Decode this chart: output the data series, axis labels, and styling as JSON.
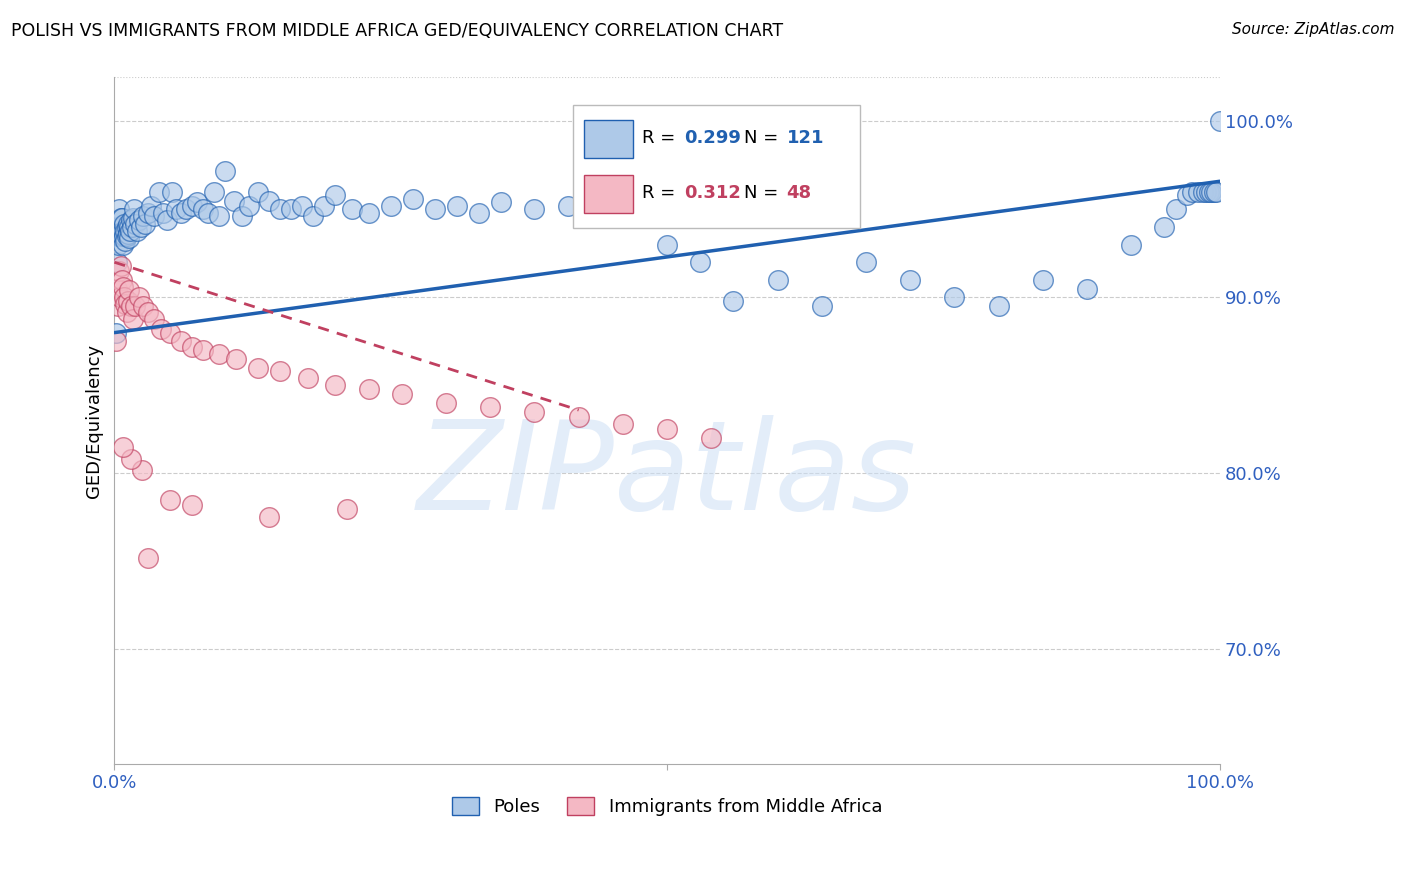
{
  "title": "POLISH VS IMMIGRANTS FROM MIDDLE AFRICA GED/EQUIVALENCY CORRELATION CHART",
  "source": "Source: ZipAtlas.com",
  "ylabel": "GED/Equivalency",
  "ytick_labels": [
    "70.0%",
    "80.0%",
    "90.0%",
    "100.0%"
  ],
  "ytick_values": [
    0.7,
    0.8,
    0.9,
    1.0
  ],
  "legend_label_blue": "Poles",
  "legend_label_pink": "Immigrants from Middle Africa",
  "watermark": "ZIPatlas",
  "blue_color": "#aec9e8",
  "pink_color": "#f4b8c4",
  "trend_blue_color": "#2060b0",
  "trend_pink_color": "#c04060",
  "axis_label_color": "#3060c0",
  "poles_x": [
    0.001,
    0.002,
    0.002,
    0.003,
    0.003,
    0.004,
    0.004,
    0.005,
    0.005,
    0.006,
    0.006,
    0.007,
    0.007,
    0.007,
    0.008,
    0.008,
    0.009,
    0.009,
    0.01,
    0.01,
    0.011,
    0.011,
    0.012,
    0.012,
    0.013,
    0.013,
    0.014,
    0.015,
    0.016,
    0.017,
    0.018,
    0.019,
    0.02,
    0.022,
    0.024,
    0.026,
    0.028,
    0.03,
    0.033,
    0.036,
    0.04,
    0.044,
    0.048,
    0.052,
    0.056,
    0.06,
    0.065,
    0.07,
    0.075,
    0.08,
    0.085,
    0.09,
    0.095,
    0.1,
    0.108,
    0.115,
    0.122,
    0.13,
    0.14,
    0.15,
    0.16,
    0.17,
    0.18,
    0.19,
    0.2,
    0.215,
    0.23,
    0.25,
    0.27,
    0.29,
    0.31,
    0.33,
    0.35,
    0.38,
    0.41,
    0.44,
    0.47,
    0.5,
    0.53,
    0.56,
    0.6,
    0.64,
    0.68,
    0.72,
    0.76,
    0.8,
    0.84,
    0.88,
    0.92,
    0.95,
    0.96,
    0.97,
    0.975,
    0.98,
    0.985,
    0.988,
    0.99,
    0.992,
    0.995,
    0.997,
    1.0
  ],
  "poles_y": [
    0.88,
    0.935,
    0.92,
    0.94,
    0.93,
    0.935,
    0.95,
    0.94,
    0.935,
    0.94,
    0.945,
    0.935,
    0.94,
    0.945,
    0.93,
    0.938,
    0.935,
    0.942,
    0.938,
    0.932,
    0.94,
    0.935,
    0.942,
    0.936,
    0.94,
    0.934,
    0.938,
    0.944,
    0.94,
    0.945,
    0.95,
    0.942,
    0.938,
    0.944,
    0.94,
    0.946,
    0.942,
    0.948,
    0.952,
    0.946,
    0.96,
    0.948,
    0.944,
    0.96,
    0.95,
    0.948,
    0.95,
    0.952,
    0.954,
    0.95,
    0.948,
    0.96,
    0.946,
    0.972,
    0.955,
    0.946,
    0.952,
    0.96,
    0.955,
    0.95,
    0.95,
    0.952,
    0.946,
    0.952,
    0.958,
    0.95,
    0.948,
    0.952,
    0.956,
    0.95,
    0.952,
    0.948,
    0.954,
    0.95,
    0.952,
    0.948,
    0.946,
    0.93,
    0.92,
    0.898,
    0.91,
    0.895,
    0.92,
    0.91,
    0.9,
    0.895,
    0.91,
    0.905,
    0.93,
    0.94,
    0.95,
    0.958,
    0.96,
    0.96,
    0.96,
    0.96,
    0.96,
    0.96,
    0.96,
    0.96,
    1.0
  ],
  "imm_x": [
    0.001,
    0.002,
    0.003,
    0.004,
    0.005,
    0.006,
    0.007,
    0.008,
    0.009,
    0.01,
    0.011,
    0.012,
    0.013,
    0.015,
    0.017,
    0.019,
    0.022,
    0.026,
    0.03,
    0.036,
    0.042,
    0.05,
    0.06,
    0.07,
    0.08,
    0.095,
    0.11,
    0.13,
    0.15,
    0.175,
    0.2,
    0.23,
    0.26,
    0.3,
    0.34,
    0.38,
    0.42,
    0.46,
    0.5,
    0.54,
    0.05,
    0.025,
    0.015,
    0.07,
    0.14,
    0.21,
    0.008,
    0.03
  ],
  "imm_y": [
    0.875,
    0.905,
    0.895,
    0.915,
    0.9,
    0.918,
    0.91,
    0.906,
    0.9,
    0.896,
    0.892,
    0.898,
    0.904,
    0.895,
    0.888,
    0.895,
    0.9,
    0.895,
    0.892,
    0.888,
    0.882,
    0.88,
    0.875,
    0.872,
    0.87,
    0.868,
    0.865,
    0.86,
    0.858,
    0.854,
    0.85,
    0.848,
    0.845,
    0.84,
    0.838,
    0.835,
    0.832,
    0.828,
    0.825,
    0.82,
    0.785,
    0.802,
    0.808,
    0.782,
    0.775,
    0.78,
    0.815,
    0.752
  ],
  "xlim": [
    0.0,
    1.0
  ],
  "ylim": [
    0.635,
    1.025
  ],
  "blue_trend_x0": 0.0,
  "blue_trend_y0": 0.88,
  "blue_trend_x1": 1.0,
  "blue_trend_y1": 0.966,
  "pink_trend_x0": 0.0,
  "pink_trend_y0": 0.92,
  "pink_trend_x1": 0.42,
  "pink_trend_y1": 0.836
}
